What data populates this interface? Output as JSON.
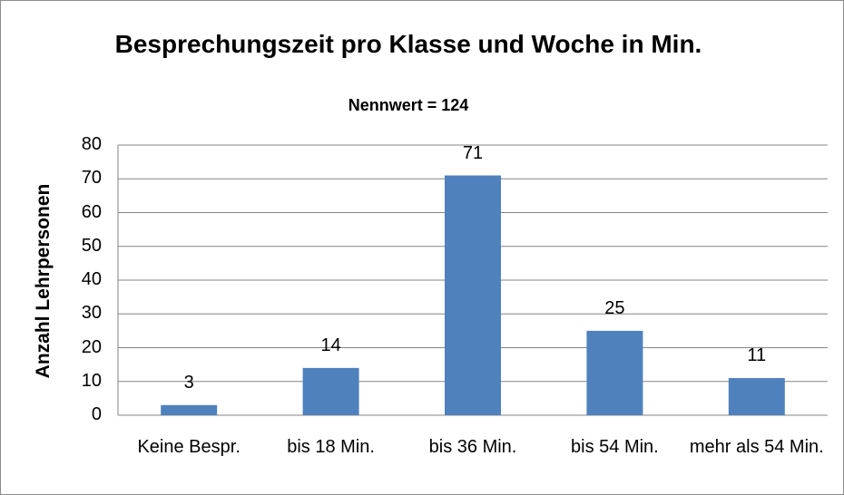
{
  "chart_data": {
    "type": "bar",
    "title": "Besprechungszeit pro Klasse und Woche in Min.",
    "subtitle": "Nennwert = 124",
    "y_label": "Anzahl Lehrpersonen",
    "categories": [
      "Keine Bespr.",
      "bis 18 Min.",
      "bis 36 Min.",
      "bis 54 Min.",
      "mehr als 54 Min."
    ],
    "values": [
      3,
      14,
      71,
      25,
      11
    ],
    "color": "#4f81bd",
    "ylim": [
      0,
      80
    ],
    "yticks": [
      0,
      10,
      20,
      30,
      40,
      50,
      60,
      70,
      80
    ],
    "grid": true
  }
}
